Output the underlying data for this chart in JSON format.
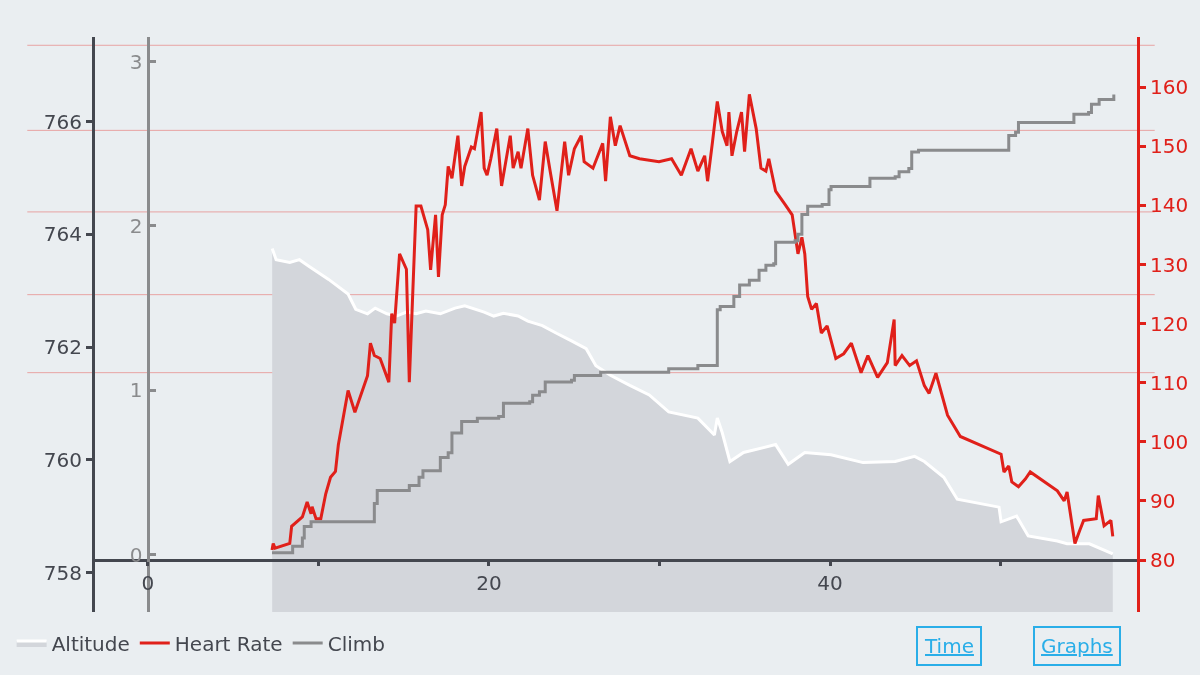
{
  "chart_data": {
    "type": "line",
    "legend": "bottom left",
    "grid": false,
    "marker": "none",
    "line_style": "solid",
    "xlim": [
      -3.1,
      58.0
    ],
    "xticks": [
      0,
      {
        "value": 10,
        "label": null
      },
      20,
      {
        "value": 30,
        "label": null
      },
      40,
      {
        "value": 50,
        "label": null
      }
    ],
    "ylim": [
      757.3,
      767.5
    ],
    "yticks": [
      758,
      760,
      762,
      764,
      766
    ],
    "y2lim": [
      71.2,
      168.5
    ],
    "y2ticks": [
      80,
      90,
      100,
      110,
      120,
      130,
      140,
      150,
      160
    ],
    "y3lim": [
      -0.35,
      3.15
    ],
    "y3ticks": [
      0,
      1,
      2,
      3
    ],
    "series": [
      {
        "name": "Altitude",
        "type": "area",
        "color": "#d3d6db",
        "axis": "y",
        "x": [
          7.29,
          7.52,
          8.32,
          8.89,
          9.46,
          10.6,
          11.74,
          12.19,
          12.88,
          13.33,
          14.02,
          14.59,
          15.16,
          15.73,
          16.3,
          17.15,
          18.01,
          18.58,
          19.72,
          20.28,
          20.85,
          21.71,
          22.28,
          23.13,
          23.99,
          24.84,
          25.7,
          26.27,
          27.12,
          28.26,
          29.4,
          30.54,
          32.25,
          33.22,
          33.39,
          33.68,
          34.13,
          34.93,
          36.81,
          37.55,
          38.52,
          40.06,
          41.94,
          43.82,
          44.96,
          45.53,
          46.67,
          47.46,
          49.91,
          50.03,
          50.94,
          51.62,
          53.33,
          53.9,
          55.21,
          56.58
        ],
        "values": [
          763.75,
          763.55,
          763.5,
          763.55,
          763.43,
          763.2,
          762.94,
          762.67,
          762.59,
          762.69,
          762.59,
          762.55,
          762.62,
          762.59,
          762.64,
          762.59,
          762.69,
          762.73,
          762.62,
          762.55,
          762.6,
          762.55,
          762.46,
          762.38,
          762.24,
          762.11,
          761.97,
          761.67,
          761.5,
          761.32,
          761.15,
          760.85,
          760.74,
          760.44,
          760.74,
          760.48,
          759.97,
          760.13,
          760.27,
          759.92,
          760.13,
          760.09,
          759.95,
          759.97,
          760.06,
          759.97,
          759.69,
          759.3,
          759.16,
          758.9,
          759.0,
          758.65,
          758.56,
          758.51,
          758.51,
          758.33
        ]
      },
      {
        "name": "Heart Rate",
        "color": "#e0201a",
        "axis": "y2",
        "x": [
          7.28,
          7.35,
          7.46,
          8.32,
          8.43,
          9.06,
          9.34,
          9.57,
          9.63,
          9.86,
          10.14,
          10.43,
          10.71,
          11.0,
          11.17,
          11.74,
          12.14,
          12.88,
          13.05,
          13.28,
          13.62,
          14.13,
          14.3,
          14.47,
          14.76,
          15.16,
          15.33,
          15.73,
          16.01,
          16.41,
          16.58,
          16.87,
          17.04,
          17.26,
          17.44,
          17.61,
          17.83,
          18.18,
          18.4,
          18.58,
          18.97,
          19.15,
          19.54,
          19.72,
          19.89,
          20.11,
          20.46,
          20.74,
          21.25,
          21.42,
          21.71,
          21.88,
          22.28,
          22.56,
          22.96,
          23.3,
          23.59,
          23.99,
          24.44,
          24.67,
          25.01,
          25.41,
          25.58,
          26.1,
          26.67,
          26.84,
          27.12,
          27.41,
          27.69,
          28.26,
          28.83,
          29.97,
          30.71,
          31.28,
          31.85,
          32.25,
          32.65,
          32.82,
          33.11,
          33.39,
          33.68,
          33.96,
          34.07,
          34.25,
          34.53,
          34.81,
          34.99,
          35.27,
          35.67,
          35.95,
          36.24,
          36.41,
          36.81,
          37.38,
          37.78,
          38.12,
          38.35,
          38.52,
          38.69,
          38.92,
          39.2,
          39.49,
          39.83,
          40.34,
          40.8,
          41.25,
          41.82,
          42.22,
          42.79,
          43.36,
          43.76,
          43.82,
          44.22,
          44.67,
          45.07,
          45.53,
          45.81,
          46.21,
          46.89,
          47.64,
          50.03,
          50.2,
          50.48,
          50.66,
          51.05,
          51.45,
          51.74,
          53.33,
          53.73,
          53.9,
          54.36,
          54.64,
          54.87,
          55.61,
          55.73,
          56.07,
          56.47,
          56.58
        ],
        "values": [
          81.7,
          82.8,
          82.0,
          82.8,
          85.7,
          87.3,
          89.8,
          87.8,
          89.0,
          87.0,
          87.0,
          91.2,
          94.0,
          95.0,
          99.5,
          108.7,
          105.0,
          111.2,
          116.7,
          114.6,
          114.1,
          110.1,
          121.7,
          120.1,
          131.8,
          129.2,
          110.1,
          139.9,
          139.9,
          135.9,
          129.1,
          138.4,
          127.9,
          138.4,
          140.1,
          146.6,
          144.6,
          151.8,
          143.3,
          146.6,
          149.9,
          149.6,
          155.8,
          146.3,
          145.1,
          147.9,
          153.0,
          143.3,
          151.8,
          146.3,
          149.1,
          146.3,
          153.0,
          145.1,
          140.9,
          150.8,
          145.8,
          139.1,
          150.8,
          145.1,
          149.6,
          151.8,
          147.4,
          146.3,
          150.5,
          144.1,
          155.0,
          150.1,
          153.5,
          148.4,
          147.9,
          147.4,
          147.9,
          145.1,
          149.6,
          145.8,
          148.4,
          144.1,
          150.8,
          157.6,
          152.5,
          150.1,
          155.8,
          148.4,
          152.5,
          155.8,
          149.1,
          158.8,
          153.0,
          146.3,
          145.8,
          147.9,
          142.4,
          140.1,
          138.4,
          131.8,
          134.6,
          131.8,
          124.6,
          122.4,
          123.4,
          118.4,
          119.6,
          114.1,
          114.9,
          116.7,
          111.7,
          114.6,
          110.9,
          113.4,
          120.7,
          112.9,
          114.6,
          112.9,
          113.7,
          109.5,
          108.2,
          111.6,
          104.5,
          100.9,
          97.9,
          94.9,
          95.9,
          93.2,
          92.4,
          93.7,
          94.9,
          91.7,
          90.0,
          91.5,
          82.8,
          85.0,
          86.7,
          87.0,
          90.9,
          85.8,
          86.7,
          84.0
        ]
      },
      {
        "name": "Climb",
        "type": "step",
        "color": "#8a8b8d",
        "axis": "y3",
        "x": [
          7.28,
          8.42,
          8.49,
          9.06,
          9.17,
          9.57,
          12.99,
          13.28,
          13.45,
          15.27,
          15.33,
          15.9,
          16.13,
          16.98,
          17.15,
          17.61,
          17.83,
          18.4,
          19.32,
          20.57,
          20.85,
          22.39,
          22.56,
          22.96,
          23.3,
          24.84,
          25.01,
          26.38,
          26.55,
          30.14,
          30.54,
          31.28,
          32.25,
          33.28,
          33.39,
          33.56,
          34.25,
          34.36,
          34.7,
          35.27,
          35.84,
          36.24,
          36.7,
          36.81,
          37.95,
          38.12,
          38.35,
          38.69,
          39.54,
          39.94,
          40.06,
          41.94,
          42.34,
          43.82,
          44.05,
          44.62,
          44.79,
          45.19,
          50.03,
          50.48,
          50.88,
          51.05,
          53.79,
          54.3,
          55.16,
          55.33,
          55.78,
          56.47,
          56.64
        ],
        "values": [
          0.01,
          0.01,
          0.05,
          0.1,
          0.17,
          0.2,
          0.2,
          0.31,
          0.39,
          0.39,
          0.42,
          0.47,
          0.51,
          0.51,
          0.59,
          0.62,
          0.74,
          0.81,
          0.83,
          0.84,
          0.92,
          0.93,
          0.97,
          0.99,
          1.05,
          1.06,
          1.09,
          1.09,
          1.11,
          1.11,
          1.13,
          1.13,
          1.15,
          1.15,
          1.49,
          1.51,
          1.51,
          1.57,
          1.64,
          1.67,
          1.73,
          1.76,
          1.77,
          1.9,
          1.91,
          1.95,
          2.07,
          2.12,
          2.13,
          2.22,
          2.24,
          2.24,
          2.29,
          2.3,
          2.33,
          2.35,
          2.45,
          2.46,
          2.46,
          2.55,
          2.57,
          2.63,
          2.63,
          2.68,
          2.69,
          2.74,
          2.77,
          2.77,
          2.8
        ]
      }
    ],
    "ref_lines": [
      {
        "axis": "y2",
        "value": 111.7,
        "color": "#e8a3a3"
      },
      {
        "axis": "y2",
        "value": 124.9,
        "color": "#e8a3a3"
      },
      {
        "axis": "y2",
        "value": 138.9,
        "color": "#e8a3a3"
      },
      {
        "axis": "y2",
        "value": 152.7,
        "color": "#e8a3a3"
      },
      {
        "axis": "y2",
        "value": 167.1,
        "color": "#e8a3a3"
      }
    ],
    "annotations": [
      "Time",
      "Graphs"
    ]
  }
}
